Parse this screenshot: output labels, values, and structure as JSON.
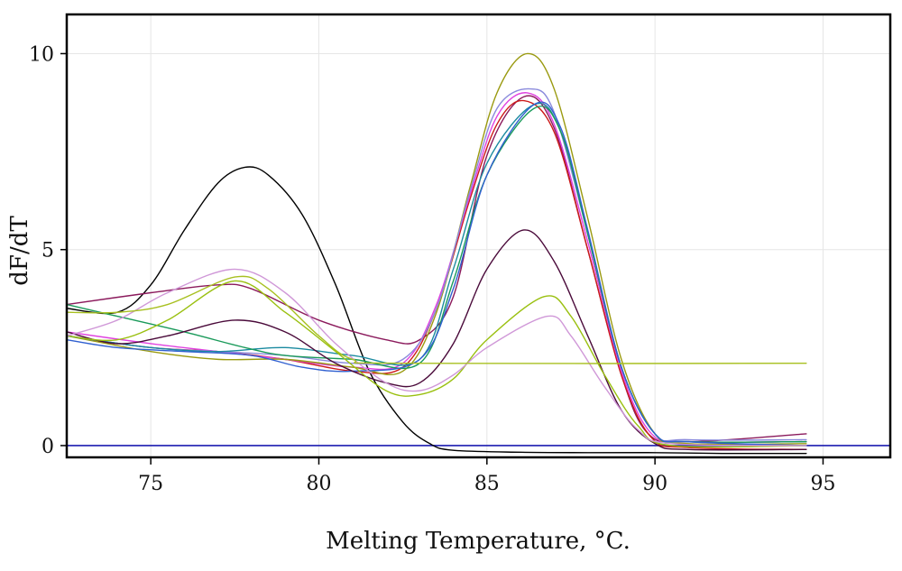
{
  "chart_data": {
    "type": "line",
    "title": "",
    "xlabel": "Melting Temperature, °C.",
    "ylabel": "dF/dT",
    "xlim": [
      72.5,
      97
    ],
    "ylim": [
      -0.3,
      11
    ],
    "x_ticks": [
      75,
      80,
      85,
      90,
      95
    ],
    "y_ticks": [
      0,
      5,
      10
    ],
    "x_tick_labels": [
      "75",
      "80",
      "85",
      "90",
      "95"
    ],
    "y_tick_labels": [
      "0",
      "5",
      "10"
    ],
    "grid": true,
    "legend": "none",
    "baseline": {
      "y": 0,
      "color": "#1c1cb0"
    },
    "series": [
      {
        "color": "#000000",
        "x": [
          72.5,
          74,
          75,
          76,
          77,
          77.8,
          78.5,
          79.5,
          80.5,
          81.5,
          82.5,
          83.3,
          84,
          86,
          88,
          90,
          92,
          94.5
        ],
        "y": [
          3.5,
          3.4,
          4.1,
          5.5,
          6.7,
          7.1,
          6.9,
          5.9,
          4.1,
          1.9,
          0.6,
          0.05,
          -0.12,
          -0.17,
          -0.18,
          -0.18,
          -0.2,
          -0.2
        ]
      },
      {
        "color": "#8b1a5c",
        "x": [
          72.5,
          75,
          77,
          78,
          80,
          82,
          83,
          84,
          85,
          86.1,
          87,
          88,
          89,
          89.8,
          91,
          94.5
        ],
        "y": [
          3.6,
          3.9,
          4.1,
          4.0,
          3.2,
          2.7,
          2.7,
          3.8,
          7.4,
          8.9,
          8.1,
          5.0,
          1.8,
          0.3,
          0.1,
          0.3
        ]
      },
      {
        "color": "#cc1a1a",
        "x": [
          72.5,
          75,
          77,
          79,
          81,
          82.5,
          83.5,
          84.5,
          85.3,
          86.1,
          87,
          88,
          89,
          89.9,
          91,
          94.5
        ],
        "y": [
          2.8,
          2.5,
          2.4,
          2.2,
          1.9,
          2.0,
          3.5,
          6.3,
          8.2,
          8.8,
          8.0,
          5.0,
          1.8,
          0.2,
          -0.05,
          -0.1
        ]
      },
      {
        "color": "#e040e0",
        "x": [
          72.5,
          75,
          77,
          79,
          81,
          82.5,
          83.5,
          84.5,
          85.3,
          86.2,
          87,
          88,
          89,
          89.9,
          91,
          94.5
        ],
        "y": [
          2.9,
          2.6,
          2.4,
          2.2,
          2.0,
          2.1,
          3.6,
          6.4,
          8.4,
          9.0,
          8.2,
          5.2,
          1.9,
          0.3,
          0.1,
          0.1
        ]
      },
      {
        "color": "#9a9a10",
        "x": [
          72.5,
          75,
          77,
          79,
          81,
          82.5,
          83.5,
          84.5,
          85.3,
          86.2,
          87,
          88,
          89,
          90,
          91,
          94.5
        ],
        "y": [
          2.8,
          2.4,
          2.2,
          2.2,
          2.0,
          1.9,
          3.4,
          6.6,
          9.0,
          10.0,
          9.1,
          5.8,
          2.2,
          0.3,
          0.05,
          0.05
        ]
      },
      {
        "color": "#8a8adc",
        "x": [
          72.5,
          75,
          77,
          79,
          81,
          82.5,
          83.5,
          84.5,
          85.3,
          86.3,
          87,
          88,
          89,
          90,
          91,
          94.5
        ],
        "y": [
          2.8,
          2.5,
          2.4,
          2.3,
          2.1,
          2.2,
          3.5,
          6.5,
          8.6,
          9.1,
          8.5,
          5.4,
          2.0,
          0.3,
          0.15,
          0.15
        ]
      },
      {
        "color": "#1a8aa0",
        "x": [
          72.5,
          75,
          77,
          79,
          81,
          83,
          84,
          85,
          86.4,
          87.2,
          88,
          89,
          90,
          91,
          94.5
        ],
        "y": [
          2.8,
          2.5,
          2.4,
          2.5,
          2.3,
          2.2,
          4.5,
          7.2,
          8.7,
          8.0,
          5.4,
          2.0,
          0.3,
          0.1,
          0.1
        ]
      },
      {
        "color": "#1a9a5a",
        "x": [
          72.5,
          74,
          76,
          77.8,
          79,
          81,
          83,
          84,
          85,
          86.4,
          87.2,
          88,
          89,
          90,
          91,
          94.5
        ],
        "y": [
          3.6,
          3.3,
          2.9,
          2.5,
          2.3,
          2.2,
          2.1,
          4.2,
          6.9,
          8.6,
          8.0,
          5.4,
          2.0,
          0.3,
          0.1,
          0.1
        ]
      },
      {
        "color": "#3060d0",
        "x": [
          72.5,
          74,
          76,
          78,
          79.5,
          81,
          83,
          84,
          85,
          86.4,
          87.2,
          88,
          89,
          90,
          91,
          94.5
        ],
        "y": [
          2.7,
          2.5,
          2.4,
          2.3,
          2.0,
          1.9,
          2.2,
          4.0,
          6.9,
          8.7,
          8.1,
          5.5,
          2.0,
          0.3,
          0.1,
          0.0
        ]
      },
      {
        "color": "#4a0a3a",
        "x": [
          72.5,
          74,
          75.5,
          77.5,
          79,
          80.5,
          82,
          83,
          84,
          85,
          86.1,
          87,
          88,
          89,
          90,
          91,
          94.5
        ],
        "y": [
          2.9,
          2.6,
          2.8,
          3.2,
          2.9,
          2.1,
          1.6,
          1.6,
          2.6,
          4.5,
          5.5,
          4.7,
          2.8,
          0.9,
          0.05,
          -0.1,
          -0.1
        ]
      },
      {
        "color": "#9ac010",
        "x": [
          72.5,
          74,
          75.5,
          77.5,
          79,
          80.5,
          82,
          83,
          84,
          85,
          86.7,
          87.5,
          88.5,
          89.5,
          90.5,
          94.5
        ],
        "y": [
          2.8,
          2.7,
          3.2,
          4.2,
          3.4,
          2.4,
          1.4,
          1.3,
          1.7,
          2.7,
          3.8,
          3.3,
          1.8,
          0.5,
          0.0,
          0.0
        ]
      },
      {
        "color": "#d098d8",
        "x": [
          72.5,
          74,
          75.5,
          77.5,
          79,
          80.5,
          82,
          83,
          84,
          85,
          86.8,
          87.5,
          88.5,
          89.5,
          90.5,
          94.5
        ],
        "y": [
          2.8,
          3.2,
          3.9,
          4.5,
          3.9,
          2.6,
          1.6,
          1.4,
          1.8,
          2.5,
          3.3,
          2.8,
          1.5,
          0.4,
          0.05,
          0.0
        ]
      },
      {
        "color": "#a8c020",
        "x": [
          72.5,
          74,
          75.5,
          77.5,
          78.5,
          80,
          81,
          82.5,
          94.5
        ],
        "y": [
          3.4,
          3.4,
          3.6,
          4.3,
          4.0,
          2.8,
          2.2,
          2.1,
          2.1
        ]
      }
    ]
  }
}
